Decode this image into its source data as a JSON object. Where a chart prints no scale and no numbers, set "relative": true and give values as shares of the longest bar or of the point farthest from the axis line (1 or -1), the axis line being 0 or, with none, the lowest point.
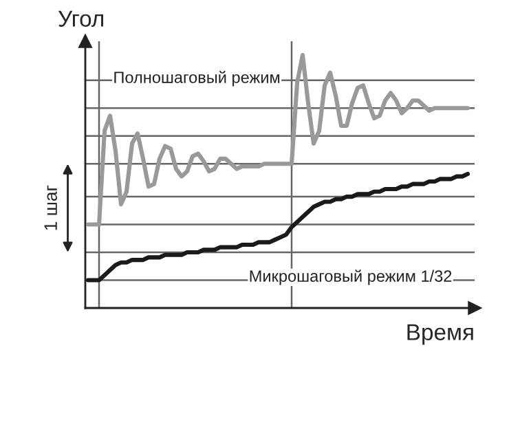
{
  "chart_data": {
    "type": "line",
    "relative": true,
    "xlabel": "Время",
    "ylabel": "Угол",
    "legend": false,
    "line_style": "solid",
    "marker": "none",
    "categories": [
      null,
      null,
      null,
      null,
      null,
      null,
      null,
      null,
      null,
      null,
      null,
      null,
      null,
      null,
      null,
      null,
      null,
      null,
      null,
      null,
      null,
      null,
      null,
      null,
      null,
      null,
      null,
      null,
      null,
      null,
      null,
      null,
      null,
      null,
      null,
      null,
      null,
      null,
      null,
      null,
      null,
      null,
      null,
      null,
      null,
      null,
      null,
      null,
      null,
      null,
      null,
      null,
      null,
      null,
      null,
      null,
      null,
      null,
      null,
      null,
      null,
      null,
      null,
      null,
      null,
      null,
      null,
      null,
      null,
      null
    ],
    "series": [
      {
        "name": "Полношаговый режим",
        "color": "#999999",
        "values": [
          0.33,
          0.33,
          0.33,
          0.7,
          0.76,
          0.62,
          0.41,
          0.46,
          0.65,
          0.69,
          0.59,
          0.48,
          0.49,
          0.59,
          0.64,
          0.63,
          0.55,
          0.52,
          0.54,
          0.6,
          0.61,
          0.58,
          0.54,
          0.55,
          0.59,
          0.59,
          0.57,
          0.55,
          0.56,
          0.56,
          0.56,
          0.56,
          0.57,
          0.57,
          0.57,
          0.57,
          0.57,
          0.57,
          0.89,
          1.0,
          0.81,
          0.65,
          0.7,
          0.88,
          0.93,
          0.84,
          0.72,
          0.72,
          0.81,
          0.87,
          0.88,
          0.81,
          0.75,
          0.76,
          0.82,
          0.85,
          0.82,
          0.77,
          0.79,
          0.82,
          0.82,
          0.8,
          0.78,
          0.79,
          0.79,
          0.79,
          0.79,
          0.79,
          0.79,
          0.79
        ]
      },
      {
        "name": "Микрошаговый режим 1/32",
        "color": "#1a1a1a",
        "values": [
          0.11,
          0.11,
          0.11,
          0.13,
          0.15,
          0.17,
          0.18,
          0.18,
          0.19,
          0.19,
          0.19,
          0.2,
          0.2,
          0.2,
          0.21,
          0.21,
          0.21,
          0.21,
          0.22,
          0.22,
          0.22,
          0.23,
          0.23,
          0.23,
          0.24,
          0.24,
          0.24,
          0.24,
          0.25,
          0.25,
          0.25,
          0.26,
          0.26,
          0.26,
          0.27,
          0.28,
          0.29,
          0.32,
          0.34,
          0.36,
          0.38,
          0.4,
          0.41,
          0.42,
          0.42,
          0.43,
          0.43,
          0.44,
          0.44,
          0.45,
          0.45,
          0.45,
          0.46,
          0.46,
          0.47,
          0.47,
          0.47,
          0.48,
          0.48,
          0.49,
          0.49,
          0.49,
          0.5,
          0.5,
          0.51,
          0.51,
          0.51,
          0.52,
          0.52,
          0.53
        ]
      }
    ],
    "ref_lines": [
      {
        "axis": "y",
        "value": 0.9,
        "color": "#666666"
      },
      {
        "axis": "y",
        "value": 0.79,
        "color": "#666666"
      },
      {
        "axis": "y",
        "value": 0.68,
        "color": "#666666"
      },
      {
        "axis": "y",
        "value": 0.57,
        "color": "#666666"
      },
      {
        "axis": "y",
        "value": 0.44,
        "color": "#666666"
      },
      {
        "axis": "y",
        "value": 0.33,
        "color": "#666666"
      },
      {
        "axis": "y",
        "value": 0.22,
        "color": "#666666"
      },
      {
        "axis": "y",
        "value": 0.11,
        "color": "#666666"
      }
    ],
    "annotations": [
      "1 шаг"
    ]
  }
}
